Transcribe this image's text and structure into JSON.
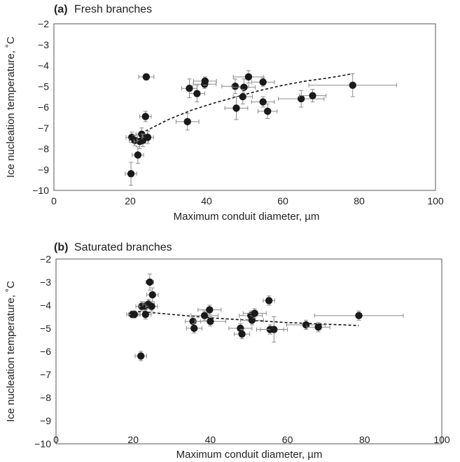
{
  "chart_data": [
    {
      "type": "scatter",
      "tag": "(a)",
      "title": "Fresh branches",
      "xlabel": "Maximum conduit diameter, µm",
      "ylabel": "Ice nucleation temperature, ˚C",
      "xlim": [
        0,
        100
      ],
      "ylim": [
        -10,
        -2
      ],
      "xticks": [
        "0",
        "20",
        "40",
        "60",
        "80",
        "100"
      ],
      "yticks": [
        "-2",
        "-3",
        "-4",
        "-5",
        "-6",
        "-7",
        "-8",
        "-9",
        "-10"
      ],
      "grid": false,
      "marker_color": "#1a1a1a",
      "errorbar_color": "#8a8a8a",
      "points": [
        {
          "x": 20.2,
          "y": -9.2,
          "xerr": 1.5,
          "yerr": 0.55
        },
        {
          "x": 20.4,
          "y": -7.45,
          "xerr": 1.5,
          "yerr": 0.25
        },
        {
          "x": 21.2,
          "y": -7.6,
          "xerr": 1.5,
          "yerr": 0.25
        },
        {
          "x": 22.0,
          "y": -8.3,
          "xerr": 1.5,
          "yerr": 0.4
        },
        {
          "x": 22.5,
          "y": -7.65,
          "xerr": 1.5,
          "yerr": 0.35
        },
        {
          "x": 23.0,
          "y": -7.3,
          "xerr": 1.5,
          "yerr": 0.3
        },
        {
          "x": 23.3,
          "y": -7.6,
          "xerr": 1.5,
          "yerr": 0.3
        },
        {
          "x": 24.0,
          "y": -6.45,
          "xerr": 1.5,
          "yerr": 0.25
        },
        {
          "x": 24.2,
          "y": -4.55,
          "xerr": 2.0,
          "yerr": 0.15
        },
        {
          "x": 24.6,
          "y": -7.45,
          "xerr": 1.5,
          "yerr": 0.3
        },
        {
          "x": 35.0,
          "y": -6.7,
          "xerr": 3.0,
          "yerr": 0.4
        },
        {
          "x": 35.5,
          "y": -5.1,
          "xerr": 2.0,
          "yerr": 0.45
        },
        {
          "x": 37.5,
          "y": -5.35,
          "xerr": 2.0,
          "yerr": 0.4
        },
        {
          "x": 39.5,
          "y": -4.9,
          "xerr": 3.0,
          "yerr": 0.2
        },
        {
          "x": 39.6,
          "y": -4.75,
          "xerr": 3.0,
          "yerr": 0.2
        },
        {
          "x": 47.5,
          "y": -5.0,
          "xerr": 3.5,
          "yerr": 0.35
        },
        {
          "x": 47.8,
          "y": -6.05,
          "xerr": 3.0,
          "yerr": 0.55
        },
        {
          "x": 49.8,
          "y": -5.05,
          "xerr": 3.0,
          "yerr": 0.4
        },
        {
          "x": 49.5,
          "y": -5.5,
          "xerr": 2.5,
          "yerr": 0.35
        },
        {
          "x": 51.0,
          "y": -4.55,
          "xerr": 4.0,
          "yerr": 0.3
        },
        {
          "x": 54.8,
          "y": -4.8,
          "xerr": 3.0,
          "yerr": 0.2
        },
        {
          "x": 54.8,
          "y": -5.75,
          "xerr": 3.0,
          "yerr": 0.25
        },
        {
          "x": 56.0,
          "y": -6.2,
          "xerr": 2.5,
          "yerr": 0.35
        },
        {
          "x": 64.8,
          "y": -5.6,
          "xerr": 6.0,
          "yerr": 0.4
        },
        {
          "x": 67.8,
          "y": -5.45,
          "xerr": 3.5,
          "yerr": 0.3
        },
        {
          "x": 78.3,
          "y": -4.95,
          "xerr": 11.5,
          "yerr": 0.55
        }
      ],
      "trendline": {
        "style": "dashed",
        "x": [
          24,
          30,
          36,
          42,
          48,
          54,
          60,
          66,
          72,
          78.3
        ],
        "y": [
          -7.15,
          -6.6,
          -6.15,
          -5.8,
          -5.5,
          -5.2,
          -4.95,
          -4.75,
          -4.6,
          -4.4
        ]
      }
    },
    {
      "type": "scatter",
      "tag": "(b)",
      "title": "Saturated branches",
      "xlabel": "Maximum conduit diameter, µm",
      "ylabel": "Ice nucleation temperature, ˚C",
      "xlim": [
        0,
        100
      ],
      "ylim": [
        -10,
        -2
      ],
      "xticks": [
        "0",
        "20",
        "40",
        "60",
        "80",
        "100"
      ],
      "yticks": [
        "-2",
        "-3",
        "-4",
        "-5",
        "-6",
        "-7",
        "-8",
        "-9",
        "-10"
      ],
      "grid": false,
      "marker_color": "#1a1a1a",
      "errorbar_color": "#8a8a8a",
      "points": [
        {
          "x": 19.8,
          "y": -4.4,
          "xerr": 1.5,
          "yerr": 0.15
        },
        {
          "x": 20.3,
          "y": -4.4,
          "xerr": 1.5,
          "yerr": 0.15
        },
        {
          "x": 22.0,
          "y": -6.2,
          "xerr": 1.5,
          "yerr": 0.2
        },
        {
          "x": 22.2,
          "y": -4.05,
          "xerr": 1.5,
          "yerr": 0.2
        },
        {
          "x": 23.0,
          "y": -4.05,
          "xerr": 1.5,
          "yerr": 0.2
        },
        {
          "x": 23.2,
          "y": -4.4,
          "xerr": 1.5,
          "yerr": 0.2
        },
        {
          "x": 24.0,
          "y": -3.95,
          "xerr": 1.5,
          "yerr": 0.2
        },
        {
          "x": 24.3,
          "y": -3.0,
          "xerr": 1.0,
          "yerr": 0.35
        },
        {
          "x": 24.8,
          "y": -4.05,
          "xerr": 1.5,
          "yerr": 0.2
        },
        {
          "x": 25.0,
          "y": -3.55,
          "xerr": 1.5,
          "yerr": 0.3
        },
        {
          "x": 35.5,
          "y": -4.7,
          "xerr": 2.0,
          "yerr": 0.2
        },
        {
          "x": 35.8,
          "y": -5.0,
          "xerr": 2.0,
          "yerr": 0.2
        },
        {
          "x": 38.5,
          "y": -4.45,
          "xerr": 3.5,
          "yerr": 0.2
        },
        {
          "x": 39.8,
          "y": -4.2,
          "xerr": 3.0,
          "yerr": 0.2
        },
        {
          "x": 40.0,
          "y": -4.7,
          "xerr": 4.0,
          "yerr": 0.2
        },
        {
          "x": 47.8,
          "y": -5.0,
          "xerr": 3.0,
          "yerr": 0.2
        },
        {
          "x": 48.2,
          "y": -5.25,
          "xerr": 2.0,
          "yerr": 0.2
        },
        {
          "x": 50.5,
          "y": -4.45,
          "xerr": 3.0,
          "yerr": 0.2
        },
        {
          "x": 50.8,
          "y": -4.65,
          "xerr": 3.0,
          "yerr": 0.2
        },
        {
          "x": 51.5,
          "y": -4.35,
          "xerr": 3.0,
          "yerr": 0.2
        },
        {
          "x": 55.2,
          "y": -3.8,
          "xerr": 1.5,
          "yerr": 0.2
        },
        {
          "x": 55.5,
          "y": -5.05,
          "xerr": 3.5,
          "yerr": 0.2
        },
        {
          "x": 56.5,
          "y": -5.05,
          "xerr": 3.5,
          "yerr": 0.55
        },
        {
          "x": 64.8,
          "y": -4.85,
          "xerr": 5.0,
          "yerr": 0.2
        },
        {
          "x": 68.0,
          "y": -4.95,
          "xerr": 3.0,
          "yerr": 0.2
        },
        {
          "x": 78.5,
          "y": -4.45,
          "xerr": 11.5,
          "yerr": 0.2
        }
      ],
      "trendline": {
        "style": "dashed",
        "x": [
          20,
          30,
          40,
          50,
          60,
          70,
          78.5
        ],
        "y": [
          -4.25,
          -4.4,
          -4.55,
          -4.65,
          -4.75,
          -4.82,
          -4.88
        ]
      }
    }
  ]
}
